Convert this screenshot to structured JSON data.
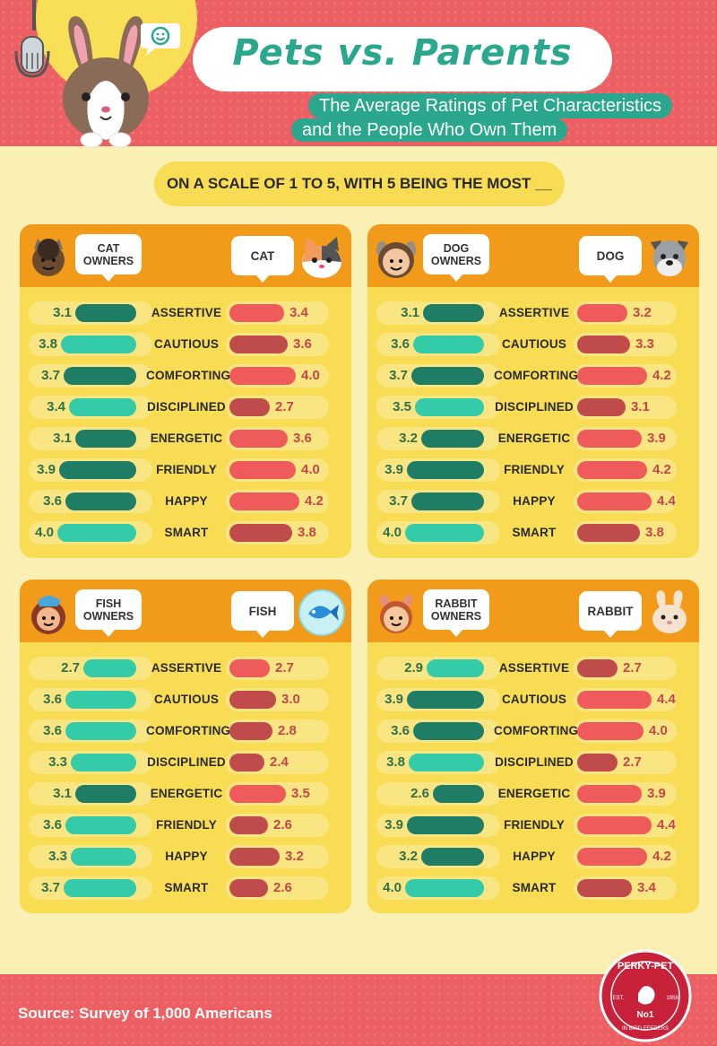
{
  "header": {
    "title": "Pets vs. Parents",
    "subtitle_line1": "The Average Ratings of Pet Characteristics",
    "subtitle_line2": "and the People Who Own Them",
    "question": "ON A SCALE OF 1 TO 5, WITH 5 BEING THE MOST __"
  },
  "footer": {
    "source": "Source: Survey of 1,000 Americans",
    "badge": {
      "brand": "PERKY-PET",
      "est": "EST.",
      "year": "1958",
      "number": "No1",
      "tagline": "IN BIRD FEEDERS"
    }
  },
  "colors": {
    "owner_dark": "#1f7c65",
    "owner_light": "#33cba8",
    "pet_red": "#ef5a5a",
    "pet_maroon": "#bf4b4a",
    "header_orange": "#f29b1a",
    "title_green": "#2aa78d"
  },
  "icons": {
    "header": "rabbit-with-microphone",
    "speech": "smile-speech-bubble"
  },
  "chart_data": [
    {
      "type": "bar",
      "owner_label": "CAT OWNERS",
      "pet_label": "CAT",
      "avatar_icon": "cat-owner-avatar",
      "pet_icon": "cat-face",
      "categories": [
        "ASSERTIVE",
        "CAUTIOUS",
        "COMFORTING",
        "DISCIPLINED",
        "ENERGETIC",
        "FRIENDLY",
        "HAPPY",
        "SMART"
      ],
      "scale": [
        1,
        5
      ],
      "series": [
        {
          "name": "CAT OWNERS",
          "values": [
            3.1,
            3.8,
            3.7,
            3.4,
            3.1,
            3.9,
            3.6,
            4.0
          ],
          "colors": [
            "dark",
            "light",
            "dark",
            "light",
            "dark",
            "dark",
            "dark",
            "light"
          ]
        },
        {
          "name": "CAT",
          "values": [
            3.4,
            3.6,
            4.0,
            2.7,
            3.6,
            4.0,
            4.2,
            3.8
          ],
          "colors": [
            "red",
            "maroon",
            "red",
            "maroon",
            "red",
            "red",
            "red",
            "maroon"
          ]
        }
      ]
    },
    {
      "type": "bar",
      "owner_label": "DOG OWNERS",
      "pet_label": "DOG",
      "avatar_icon": "dog-owner-avatar",
      "pet_icon": "dog-face",
      "categories": [
        "ASSERTIVE",
        "CAUTIOUS",
        "COMFORTING",
        "DISCIPLINED",
        "ENERGETIC",
        "FRIENDLY",
        "HAPPY",
        "SMART"
      ],
      "scale": [
        1,
        5
      ],
      "series": [
        {
          "name": "DOG OWNERS",
          "values": [
            3.1,
            3.6,
            3.7,
            3.5,
            3.2,
            3.9,
            3.7,
            4.0
          ],
          "colors": [
            "dark",
            "light",
            "dark",
            "light",
            "dark",
            "dark",
            "dark",
            "light"
          ]
        },
        {
          "name": "DOG",
          "values": [
            3.2,
            3.3,
            4.2,
            3.1,
            3.9,
            4.2,
            4.4,
            3.8
          ],
          "colors": [
            "red",
            "maroon",
            "red",
            "maroon",
            "red",
            "red",
            "red",
            "maroon"
          ]
        }
      ]
    },
    {
      "type": "bar",
      "owner_label": "FISH OWNERS",
      "pet_label": "FISH",
      "avatar_icon": "fish-owner-avatar",
      "pet_icon": "fish-bubble",
      "categories": [
        "ASSERTIVE",
        "CAUTIOUS",
        "COMFORTING",
        "DISCIPLINED",
        "ENERGETIC",
        "FRIENDLY",
        "HAPPY",
        "SMART"
      ],
      "scale": [
        1,
        5
      ],
      "series": [
        {
          "name": "FISH OWNERS",
          "values": [
            2.7,
            3.6,
            3.6,
            3.3,
            3.1,
            3.6,
            3.3,
            3.7
          ],
          "colors": [
            "light",
            "light",
            "light",
            "light",
            "dark",
            "light",
            "light",
            "light"
          ]
        },
        {
          "name": "FISH",
          "values": [
            2.7,
            3.0,
            2.8,
            2.4,
            3.5,
            2.6,
            3.2,
            2.6
          ],
          "colors": [
            "red",
            "maroon",
            "maroon",
            "maroon",
            "red",
            "maroon",
            "maroon",
            "maroon"
          ]
        }
      ]
    },
    {
      "type": "bar",
      "owner_label": "RABBIT OWNERS",
      "pet_label": "RABBIT",
      "avatar_icon": "rabbit-owner-avatar",
      "pet_icon": "rabbit-face",
      "categories": [
        "ASSERTIVE",
        "CAUTIOUS",
        "COMFORTING",
        "DISCIPLINED",
        "ENERGETIC",
        "FRIENDLY",
        "HAPPY",
        "SMART"
      ],
      "scale": [
        1,
        5
      ],
      "series": [
        {
          "name": "RABBIT OWNERS",
          "values": [
            2.9,
            3.9,
            3.6,
            3.8,
            2.6,
            3.9,
            3.2,
            4.0
          ],
          "colors": [
            "light",
            "dark",
            "dark",
            "light",
            "dark",
            "dark",
            "dark",
            "light"
          ]
        },
        {
          "name": "RABBIT",
          "values": [
            2.7,
            4.4,
            4.0,
            2.7,
            3.9,
            4.4,
            4.2,
            3.4
          ],
          "colors": [
            "maroon",
            "red",
            "red",
            "maroon",
            "red",
            "red",
            "red",
            "maroon"
          ]
        }
      ]
    }
  ]
}
